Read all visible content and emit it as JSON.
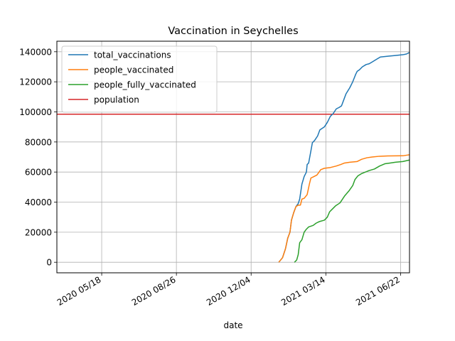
{
  "chart_data": {
    "type": "line",
    "title": "Vaccination in Seychelles",
    "xlabel": "date",
    "ylabel": "",
    "x_ticks": [
      "2020 05/18",
      "2020 08/26",
      "2020 12/04",
      "2021 03/14",
      "2021 06/22"
    ],
    "xlim": [
      "2020-03-19",
      "2021-07-04"
    ],
    "ylim": [
      -7000,
      147000
    ],
    "y_ticks": [
      0,
      20000,
      40000,
      60000,
      80000,
      100000,
      120000,
      140000
    ],
    "grid": true,
    "legend_position": "top-left",
    "series": [
      {
        "name": "total_vaccinations",
        "color": "#1f77b4",
        "points": [
          [
            "2021-01-10",
            0
          ],
          [
            "2021-01-15",
            3000
          ],
          [
            "2021-01-19",
            9000
          ],
          [
            "2021-01-22",
            16000
          ],
          [
            "2021-01-25",
            20000
          ],
          [
            "2021-01-27",
            28000
          ],
          [
            "2021-01-30",
            33000
          ],
          [
            "2021-02-02",
            37000
          ],
          [
            "2021-02-05",
            39000
          ],
          [
            "2021-02-07",
            42000
          ],
          [
            "2021-02-10",
            52000
          ],
          [
            "2021-02-13",
            57000
          ],
          [
            "2021-02-16",
            60000
          ],
          [
            "2021-02-17",
            65000
          ],
          [
            "2021-02-19",
            66000
          ],
          [
            "2021-02-22",
            74000
          ],
          [
            "2021-02-24",
            79500
          ],
          [
            "2021-02-27",
            81000
          ],
          [
            "2021-03-03",
            84000
          ],
          [
            "2021-03-06",
            88000
          ],
          [
            "2021-03-12",
            90000
          ],
          [
            "2021-03-16",
            93000
          ],
          [
            "2021-03-20",
            97000
          ],
          [
            "2021-03-24",
            99000
          ],
          [
            "2021-03-28",
            102000
          ],
          [
            "2021-04-01",
            103000
          ],
          [
            "2021-04-04",
            104000
          ],
          [
            "2021-04-07",
            108000
          ],
          [
            "2021-04-10",
            112000
          ],
          [
            "2021-04-15",
            116000
          ],
          [
            "2021-04-19",
            120000
          ],
          [
            "2021-04-23",
            125000
          ],
          [
            "2021-04-25",
            127000
          ],
          [
            "2021-04-28",
            128000
          ],
          [
            "2021-05-02",
            130000
          ],
          [
            "2021-05-07",
            131500
          ],
          [
            "2021-05-11",
            132000
          ],
          [
            "2021-05-16",
            133500
          ],
          [
            "2021-05-21",
            135000
          ],
          [
            "2021-05-26",
            136500
          ],
          [
            "2021-06-05",
            137000
          ],
          [
            "2021-06-15",
            137500
          ],
          [
            "2021-06-25",
            138000
          ],
          [
            "2021-06-30",
            138500
          ],
          [
            "2021-07-04",
            139500
          ]
        ]
      },
      {
        "name": "people_vaccinated",
        "color": "#ff7f0e",
        "points": [
          [
            "2021-01-10",
            0
          ],
          [
            "2021-01-15",
            3000
          ],
          [
            "2021-01-19",
            9000
          ],
          [
            "2021-01-22",
            16000
          ],
          [
            "2021-01-25",
            20000
          ],
          [
            "2021-01-27",
            28000
          ],
          [
            "2021-01-30",
            33000
          ],
          [
            "2021-02-02",
            37000
          ],
          [
            "2021-02-05",
            38000
          ],
          [
            "2021-02-08",
            38000
          ],
          [
            "2021-02-10",
            42000
          ],
          [
            "2021-02-13",
            42500
          ],
          [
            "2021-02-17",
            45000
          ],
          [
            "2021-02-20",
            52000
          ],
          [
            "2021-02-22",
            56000
          ],
          [
            "2021-02-26",
            57000
          ],
          [
            "2021-03-02",
            58000
          ],
          [
            "2021-03-05",
            60000
          ],
          [
            "2021-03-07",
            61500
          ],
          [
            "2021-03-12",
            62500
          ],
          [
            "2021-03-20",
            63000
          ],
          [
            "2021-03-28",
            64000
          ],
          [
            "2021-04-03",
            65000
          ],
          [
            "2021-04-08",
            66000
          ],
          [
            "2021-04-15",
            66500
          ],
          [
            "2021-04-25",
            67000
          ],
          [
            "2021-05-01",
            68500
          ],
          [
            "2021-05-08",
            69500
          ],
          [
            "2021-05-15",
            70000
          ],
          [
            "2021-05-25",
            70500
          ],
          [
            "2021-06-05",
            70700
          ],
          [
            "2021-06-25",
            70800
          ],
          [
            "2021-07-04",
            71500
          ]
        ]
      },
      {
        "name": "people_fully_vaccinated",
        "color": "#2ca02c",
        "points": [
          [
            "2021-01-31",
            0
          ],
          [
            "2021-02-03",
            1500
          ],
          [
            "2021-02-05",
            5000
          ],
          [
            "2021-02-07",
            13000
          ],
          [
            "2021-02-10",
            15000
          ],
          [
            "2021-02-13",
            20000
          ],
          [
            "2021-02-16",
            22000
          ],
          [
            "2021-02-19",
            23500
          ],
          [
            "2021-02-25",
            24500
          ],
          [
            "2021-03-01",
            26000
          ],
          [
            "2021-03-05",
            27000
          ],
          [
            "2021-03-12",
            28000
          ],
          [
            "2021-03-16",
            30000
          ],
          [
            "2021-03-19",
            33500
          ],
          [
            "2021-03-22",
            35000
          ],
          [
            "2021-03-27",
            37500
          ],
          [
            "2021-04-02",
            39500
          ],
          [
            "2021-04-08",
            44000
          ],
          [
            "2021-04-14",
            47500
          ],
          [
            "2021-04-19",
            51000
          ],
          [
            "2021-04-22",
            55000
          ],
          [
            "2021-04-26",
            57500
          ],
          [
            "2021-05-01",
            59000
          ],
          [
            "2021-05-06",
            60000
          ],
          [
            "2021-05-11",
            61000
          ],
          [
            "2021-05-18",
            62000
          ],
          [
            "2021-05-25",
            64000
          ],
          [
            "2021-06-01",
            65500
          ],
          [
            "2021-06-08",
            66000
          ],
          [
            "2021-06-15",
            66500
          ],
          [
            "2021-06-25",
            67000
          ],
          [
            "2021-07-04",
            68000
          ]
        ]
      }
    ],
    "reference_lines": [
      {
        "name": "population",
        "color": "#d62728",
        "y": 98462
      }
    ]
  }
}
